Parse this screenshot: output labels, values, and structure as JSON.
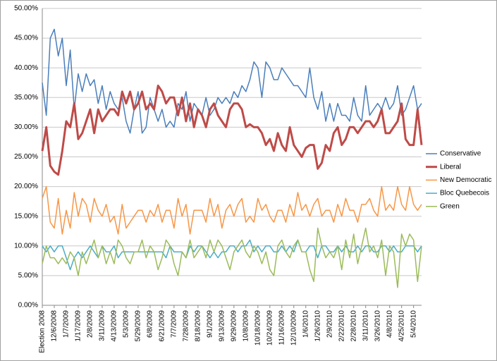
{
  "chart_data": {
    "type": "line",
    "categories": [
      "Election 2008",
      null,
      null,
      "12/6/2008",
      null,
      null,
      "1/7/2009",
      null,
      null,
      "1/17/2009",
      null,
      null,
      "2/8/2009",
      null,
      null,
      "3/11/2009",
      null,
      null,
      "4/13/2009",
      null,
      null,
      "5/3/2009",
      null,
      null,
      "5/29/2009",
      null,
      null,
      "6/8/2009",
      null,
      null,
      "6/21/2009",
      null,
      null,
      "7/7/2009",
      null,
      null,
      "7/28/2009",
      null,
      null,
      "8/18/2009",
      null,
      null,
      "9/1/2009",
      null,
      null,
      "9/13/2009",
      null,
      null,
      "9/29/2009",
      null,
      null,
      "10/8/2009",
      null,
      null,
      "10/18/2009",
      null,
      null,
      "10/24/2009",
      null,
      null,
      "11/16/2009",
      null,
      null,
      "12/10/2009",
      null,
      null,
      "1/6/2010",
      null,
      null,
      "1/26/2010",
      null,
      null,
      "2/9/2010",
      null,
      null,
      "2/22/2010",
      null,
      null,
      "2/28/2010",
      null,
      null,
      "3/11/2010",
      null,
      null,
      "3/26/2010",
      null,
      null,
      "4/8/2010",
      null,
      null,
      "4/25/2010",
      null,
      null,
      "5/4/2010",
      null,
      null
    ],
    "series": [
      {
        "name": "Conservative",
        "color": "#4a7ebb",
        "width": 1.5,
        "values": [
          37.5,
          32,
          45,
          46.5,
          42,
          45,
          37,
          43,
          33,
          39,
          36,
          39,
          37,
          38,
          34,
          37,
          33,
          36,
          34,
          33,
          35,
          31,
          29,
          33,
          36,
          29,
          30,
          35,
          33,
          31,
          33,
          30,
          31,
          30,
          34,
          33,
          36,
          31,
          34,
          33,
          32,
          35,
          32,
          33,
          35,
          34,
          35,
          34,
          36,
          35,
          37,
          36,
          38,
          41,
          40,
          35,
          41,
          40,
          38,
          38,
          40,
          39,
          38,
          37,
          37,
          36,
          35,
          40,
          35,
          33,
          36,
          31,
          34,
          31,
          34,
          32,
          32,
          31,
          35,
          32,
          31,
          37,
          32,
          33,
          34,
          33,
          35,
          33,
          34,
          37,
          32,
          33,
          35,
          37,
          33,
          34
        ]
      },
      {
        "name": "Liberal",
        "color": "#be4b48",
        "width": 3,
        "values": [
          26,
          30,
          23.5,
          22.5,
          22,
          26,
          31,
          30,
          34,
          28,
          29,
          31,
          33,
          29,
          33,
          31,
          32,
          33,
          33,
          32,
          36,
          34,
          36,
          33,
          34,
          36,
          33,
          34,
          33,
          37,
          36,
          34,
          35,
          35,
          32,
          35,
          31,
          34,
          30,
          33,
          32,
          30,
          33,
          34,
          32,
          31,
          30,
          33,
          34,
          34,
          33,
          30,
          30.5,
          30,
          30,
          29,
          27,
          28,
          26,
          29,
          27,
          26,
          30,
          27,
          26,
          25,
          26.5,
          27,
          27,
          23,
          24,
          27,
          26,
          29,
          30,
          27,
          28,
          30,
          30,
          29,
          30,
          31,
          31,
          30,
          31,
          33,
          29,
          29,
          30,
          31,
          34,
          28,
          27,
          27,
          33,
          27
        ]
      },
      {
        "name": "New Democratic",
        "color": "#f79646",
        "width": 1.5,
        "values": [
          18,
          20,
          14,
          13,
          18,
          12,
          16,
          13,
          19,
          15,
          18,
          17,
          14,
          18,
          16,
          15,
          17,
          14,
          15,
          12,
          17,
          13,
          14,
          15,
          16,
          16,
          14,
          16,
          15,
          17,
          14,
          16,
          16,
          13,
          18,
          15,
          17,
          12,
          16,
          16,
          16,
          14,
          18,
          15,
          17,
          13,
          16,
          17,
          15,
          17,
          18,
          14,
          15,
          14,
          18,
          16,
          17,
          15,
          14,
          16,
          16,
          14,
          17,
          15,
          19,
          16,
          17,
          15,
          17,
          18,
          15,
          16,
          16,
          14,
          17,
          15,
          18,
          16,
          16,
          14,
          17,
          17,
          18,
          16,
          15,
          20,
          16,
          17,
          16,
          20,
          17,
          16,
          20,
          17,
          16,
          17
        ]
      },
      {
        "name": "Bloc Quebecois",
        "color": "#4bacc6",
        "width": 1.5,
        "values": [
          10,
          9,
          10,
          9,
          10,
          10,
          8,
          6,
          8,
          9,
          8,
          9,
          10,
          9,
          8,
          10,
          9,
          9,
          10,
          8,
          9,
          9,
          9,
          9,
          9,
          9,
          9,
          9,
          9,
          9,
          9,
          8,
          10,
          9,
          9,
          9,
          8,
          10,
          9,
          10,
          10,
          9,
          8,
          9,
          8,
          9,
          9,
          10,
          10,
          9,
          10,
          10,
          11,
          9,
          10,
          9,
          10,
          10,
          9,
          9,
          10,
          9,
          10,
          9,
          11,
          9,
          9,
          10,
          10,
          8,
          10,
          10,
          9,
          9,
          10,
          9,
          10,
          9,
          9,
          10,
          9,
          10,
          10,
          9,
          9,
          10,
          10,
          9,
          10,
          9,
          9,
          10,
          10,
          10,
          9,
          10
        ]
      },
      {
        "name": "Green",
        "color": "#9bbb59",
        "width": 1.5,
        "values": [
          7,
          10,
          8,
          8,
          7,
          8,
          7,
          9,
          8,
          5,
          9,
          7,
          9,
          11,
          8,
          10,
          7,
          9,
          7,
          11,
          10,
          8,
          7,
          9,
          9,
          11,
          8,
          10,
          9,
          6,
          8,
          11,
          10,
          7,
          5,
          9,
          8,
          11,
          8,
          9,
          10,
          8,
          11,
          9,
          11,
          10,
          8,
          6,
          9,
          10,
          11,
          9,
          8,
          10,
          9,
          7,
          9,
          6,
          5,
          10,
          11,
          9,
          8,
          10,
          11,
          9,
          9,
          6,
          4,
          13,
          10,
          8,
          9,
          8,
          10,
          6,
          11,
          8,
          12,
          7,
          10,
          13,
          9,
          10,
          8,
          11,
          5,
          10,
          9,
          3,
          12,
          10,
          12,
          11,
          4,
          10
        ]
      }
    ],
    "ylim": [
      0,
      50
    ],
    "yticks": [
      {
        "value": 0,
        "label": "0.00%"
      },
      {
        "value": 5,
        "label": "5.00%"
      },
      {
        "value": 10,
        "label": "10.00%"
      },
      {
        "value": 15,
        "label": "15.00%"
      },
      {
        "value": 20,
        "label": "20.00%"
      },
      {
        "value": 25,
        "label": "25.00%"
      },
      {
        "value": 30,
        "label": "30.00%"
      },
      {
        "value": 35,
        "label": "35.00%"
      },
      {
        "value": 40,
        "label": "40.00%"
      },
      {
        "value": 45,
        "label": "45.00%"
      },
      {
        "value": 50,
        "label": "50.00%"
      }
    ],
    "grid": true,
    "legend": "right"
  }
}
